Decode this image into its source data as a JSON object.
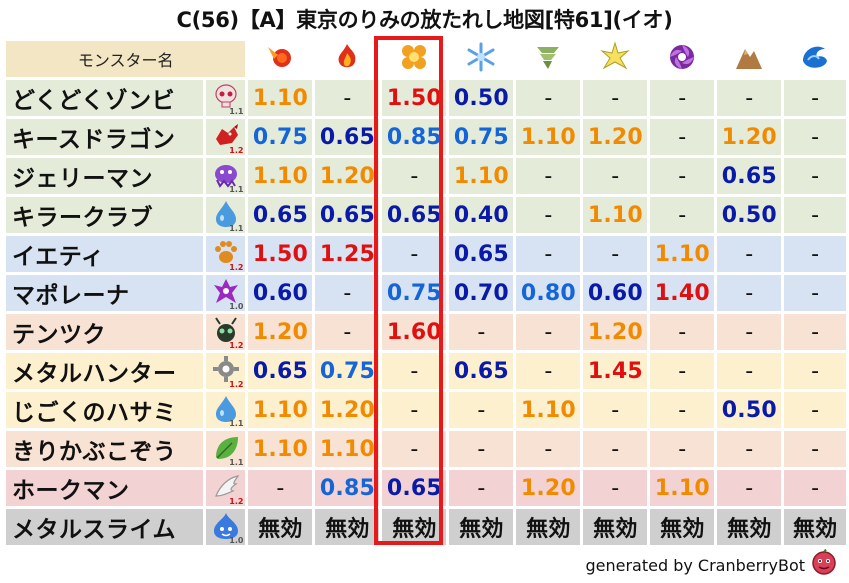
{
  "title": "C(56)【A】東京のりみの放たれし地図[特61](イオ)",
  "header": {
    "name_label": "モンスター名",
    "elements": [
      {
        "icon": "fire-icon"
      },
      {
        "icon": "flame-icon"
      },
      {
        "icon": "explosion-icon"
      },
      {
        "icon": "ice-icon"
      },
      {
        "icon": "wind-icon"
      },
      {
        "icon": "lightning-icon"
      },
      {
        "icon": "darkness-icon"
      },
      {
        "icon": "earth-icon"
      },
      {
        "icon": "water-wave-icon"
      }
    ]
  },
  "rows": [
    {
      "name": "どくどくゾンビ",
      "icon": "skull-icon",
      "ver": "1.1",
      "ver_red": false,
      "bg": "green",
      "values": [
        {
          "t": "1.10",
          "c": "orange"
        },
        {
          "t": "-",
          "c": "black"
        },
        {
          "t": "1.50",
          "c": "red"
        },
        {
          "t": "0.50",
          "c": "navy"
        },
        {
          "t": "-",
          "c": "black"
        },
        {
          "t": "-",
          "c": "black"
        },
        {
          "t": "-",
          "c": "black"
        },
        {
          "t": "-",
          "c": "black"
        },
        {
          "t": "-",
          "c": "black"
        }
      ]
    },
    {
      "name": "キースドラゴン",
      "icon": "dragon-icon",
      "ver": "1.2",
      "ver_red": true,
      "bg": "green",
      "values": [
        {
          "t": "0.75",
          "c": "blue"
        },
        {
          "t": "0.65",
          "c": "navy"
        },
        {
          "t": "0.85",
          "c": "blue"
        },
        {
          "t": "0.75",
          "c": "blue"
        },
        {
          "t": "1.10",
          "c": "orange"
        },
        {
          "t": "1.20",
          "c": "orange"
        },
        {
          "t": "-",
          "c": "black"
        },
        {
          "t": "1.20",
          "c": "orange"
        },
        {
          "t": "-",
          "c": "black"
        }
      ]
    },
    {
      "name": "ジェリーマン",
      "icon": "jelly-icon",
      "ver": "1.1",
      "ver_red": false,
      "bg": "green",
      "values": [
        {
          "t": "1.10",
          "c": "orange"
        },
        {
          "t": "1.20",
          "c": "orange"
        },
        {
          "t": "-",
          "c": "black"
        },
        {
          "t": "1.10",
          "c": "orange"
        },
        {
          "t": "-",
          "c": "black"
        },
        {
          "t": "-",
          "c": "black"
        },
        {
          "t": "-",
          "c": "black"
        },
        {
          "t": "0.65",
          "c": "navy"
        },
        {
          "t": "-",
          "c": "black"
        }
      ]
    },
    {
      "name": "キラークラブ",
      "icon": "water-drop-icon",
      "ver": "1.1",
      "ver_red": false,
      "bg": "green",
      "values": [
        {
          "t": "0.65",
          "c": "navy"
        },
        {
          "t": "0.65",
          "c": "navy"
        },
        {
          "t": "0.65",
          "c": "navy"
        },
        {
          "t": "0.40",
          "c": "navy"
        },
        {
          "t": "-",
          "c": "black"
        },
        {
          "t": "1.10",
          "c": "orange"
        },
        {
          "t": "-",
          "c": "black"
        },
        {
          "t": "0.50",
          "c": "navy"
        },
        {
          "t": "-",
          "c": "black"
        }
      ]
    },
    {
      "name": "イエティ",
      "icon": "paw-icon",
      "ver": "1.2",
      "ver_red": true,
      "bg": "blue",
      "values": [
        {
          "t": "1.50",
          "c": "red"
        },
        {
          "t": "1.25",
          "c": "red"
        },
        {
          "t": "-",
          "c": "black"
        },
        {
          "t": "0.65",
          "c": "navy"
        },
        {
          "t": "-",
          "c": "black"
        },
        {
          "t": "-",
          "c": "black"
        },
        {
          "t": "1.10",
          "c": "orange"
        },
        {
          "t": "-",
          "c": "black"
        },
        {
          "t": "-",
          "c": "black"
        }
      ]
    },
    {
      "name": "マポレーナ",
      "icon": "demon-icon",
      "ver": "1.0",
      "ver_red": false,
      "bg": "blue",
      "values": [
        {
          "t": "0.60",
          "c": "navy"
        },
        {
          "t": "-",
          "c": "black"
        },
        {
          "t": "0.75",
          "c": "blue"
        },
        {
          "t": "0.70",
          "c": "navy"
        },
        {
          "t": "0.80",
          "c": "blue"
        },
        {
          "t": "0.60",
          "c": "navy"
        },
        {
          "t": "1.40",
          "c": "red"
        },
        {
          "t": "-",
          "c": "black"
        },
        {
          "t": "-",
          "c": "black"
        }
      ]
    },
    {
      "name": "テンツク",
      "icon": "insect-icon",
      "ver": "1.2",
      "ver_red": true,
      "bg": "peach",
      "values": [
        {
          "t": "1.20",
          "c": "orange"
        },
        {
          "t": "-",
          "c": "black"
        },
        {
          "t": "1.60",
          "c": "red"
        },
        {
          "t": "-",
          "c": "black"
        },
        {
          "t": "-",
          "c": "black"
        },
        {
          "t": "1.20",
          "c": "orange"
        },
        {
          "t": "-",
          "c": "black"
        },
        {
          "t": "-",
          "c": "black"
        },
        {
          "t": "-",
          "c": "black"
        }
      ]
    },
    {
      "name": "メタルハンター",
      "icon": "gear-icon",
      "ver": "1.2",
      "ver_red": true,
      "bg": "yellow",
      "values": [
        {
          "t": "0.65",
          "c": "navy"
        },
        {
          "t": "0.75",
          "c": "blue"
        },
        {
          "t": "-",
          "c": "black"
        },
        {
          "t": "0.65",
          "c": "navy"
        },
        {
          "t": "-",
          "c": "black"
        },
        {
          "t": "1.45",
          "c": "red"
        },
        {
          "t": "-",
          "c": "black"
        },
        {
          "t": "-",
          "c": "black"
        },
        {
          "t": "-",
          "c": "black"
        }
      ]
    },
    {
      "name": "じごくのハサミ",
      "icon": "water-drop-icon",
      "ver": "1.1",
      "ver_red": false,
      "bg": "yellow",
      "values": [
        {
          "t": "1.10",
          "c": "orange"
        },
        {
          "t": "1.20",
          "c": "orange"
        },
        {
          "t": "-",
          "c": "black"
        },
        {
          "t": "-",
          "c": "black"
        },
        {
          "t": "1.10",
          "c": "orange"
        },
        {
          "t": "-",
          "c": "black"
        },
        {
          "t": "-",
          "c": "black"
        },
        {
          "t": "0.50",
          "c": "navy"
        },
        {
          "t": "-",
          "c": "black"
        }
      ]
    },
    {
      "name": "きりかぶこぞう",
      "icon": "leaf-icon",
      "ver": "1.1",
      "ver_red": false,
      "bg": "peach",
      "values": [
        {
          "t": "1.10",
          "c": "orange"
        },
        {
          "t": "1.10",
          "c": "orange"
        },
        {
          "t": "-",
          "c": "black"
        },
        {
          "t": "-",
          "c": "black"
        },
        {
          "t": "-",
          "c": "black"
        },
        {
          "t": "-",
          "c": "black"
        },
        {
          "t": "-",
          "c": "black"
        },
        {
          "t": "-",
          "c": "black"
        },
        {
          "t": "-",
          "c": "black"
        }
      ]
    },
    {
      "name": "ホークマン",
      "icon": "wing-icon",
      "ver": "1.2",
      "ver_red": true,
      "bg": "pink",
      "values": [
        {
          "t": "-",
          "c": "black"
        },
        {
          "t": "0.85",
          "c": "blue"
        },
        {
          "t": "0.65",
          "c": "navy"
        },
        {
          "t": "-",
          "c": "black"
        },
        {
          "t": "1.20",
          "c": "orange"
        },
        {
          "t": "-",
          "c": "black"
        },
        {
          "t": "1.10",
          "c": "orange"
        },
        {
          "t": "-",
          "c": "black"
        },
        {
          "t": "-",
          "c": "black"
        }
      ]
    },
    {
      "name": "メタルスライム",
      "icon": "slime-icon",
      "ver": "1.0",
      "ver_red": false,
      "bg": "gray",
      "values": [
        {
          "t": "無効",
          "c": "black"
        },
        {
          "t": "無効",
          "c": "black"
        },
        {
          "t": "無効",
          "c": "black"
        },
        {
          "t": "無効",
          "c": "black"
        },
        {
          "t": "無効",
          "c": "black"
        },
        {
          "t": "無効",
          "c": "black"
        },
        {
          "t": "無効",
          "c": "black"
        },
        {
          "t": "無効",
          "c": "black"
        },
        {
          "t": "無効",
          "c": "black"
        }
      ]
    }
  ],
  "footer": {
    "text": "generated by CranberryBot",
    "avatar_icon": "cranberry-bot-icon"
  },
  "colors": {
    "orange": "#f28a00",
    "red": "#e01010",
    "blue": "#1466d8",
    "navy": "#0a1aa8",
    "highlight": "#e8191b"
  }
}
